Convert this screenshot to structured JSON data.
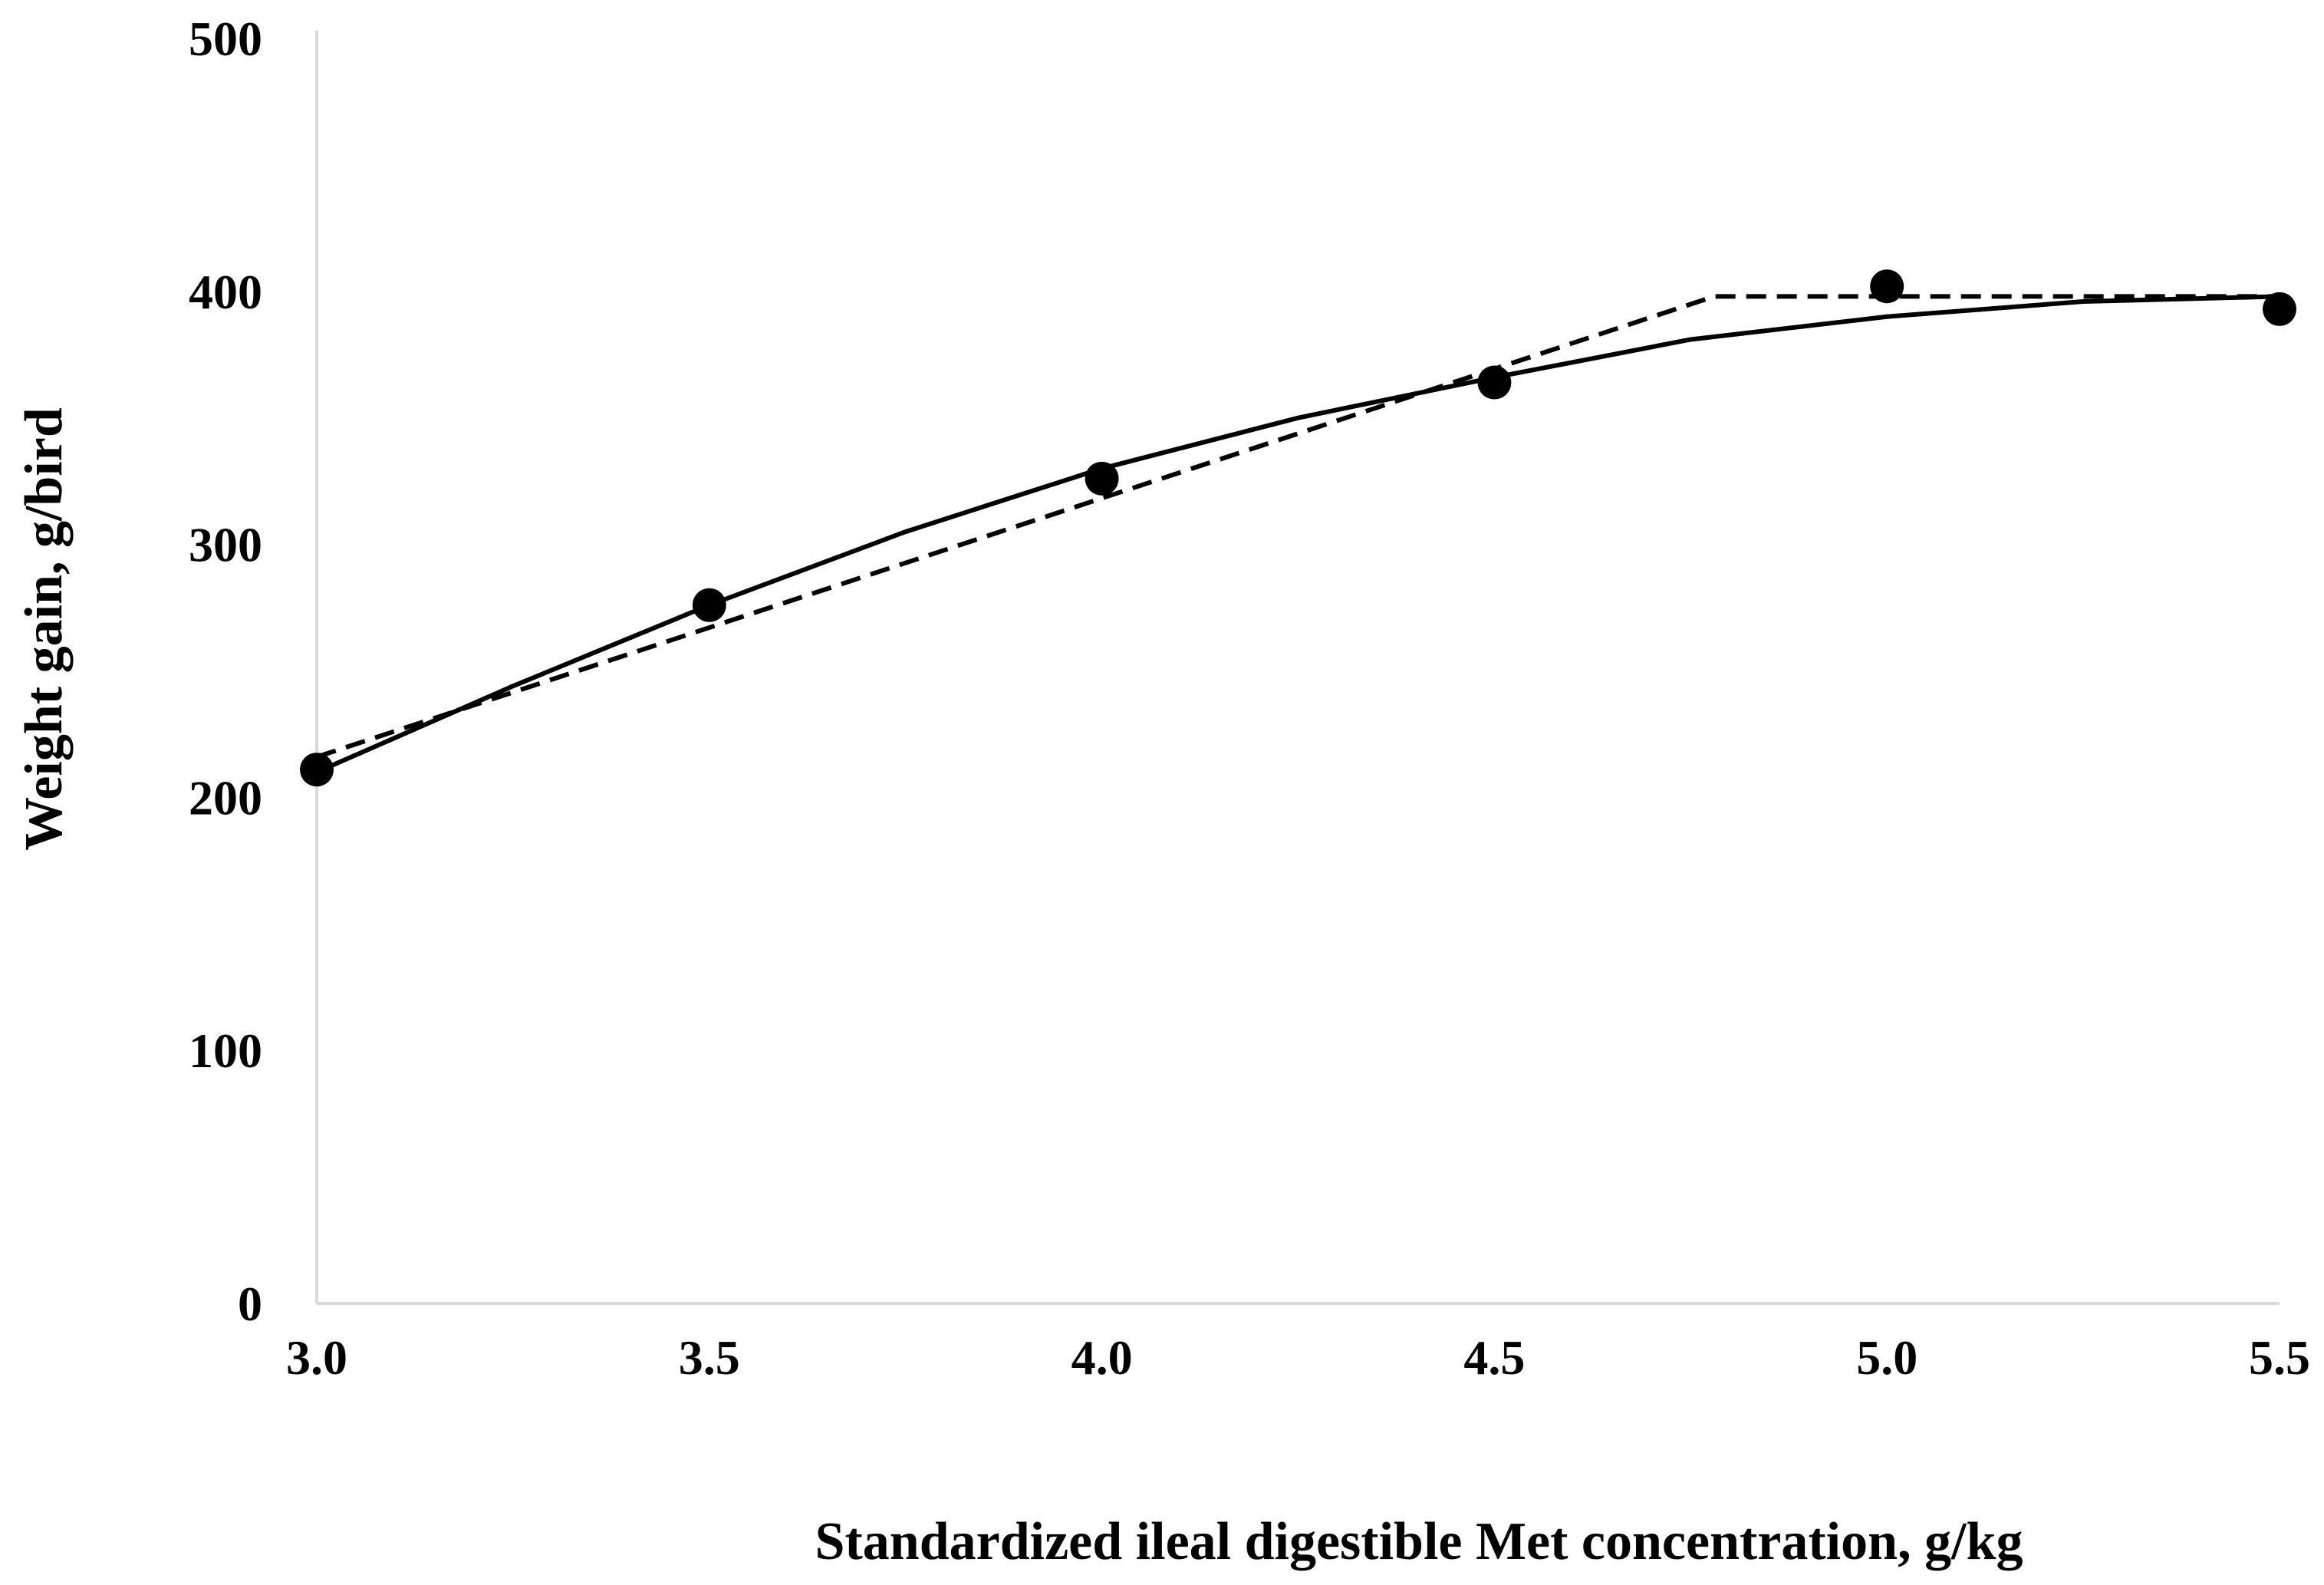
{
  "chart_data": {
    "type": "line",
    "title": "",
    "xlabel": "Standardized ileal digestible Met concentration, g/kg",
    "ylabel": "Weight gain, g/bird",
    "xlim": [
      3.0,
      5.5
    ],
    "ylim": [
      0,
      500
    ],
    "x_ticks": [
      "3.0",
      "3.5",
      "4.0",
      "4.5",
      "5.0",
      "5.5"
    ],
    "y_ticks": [
      "0",
      "100",
      "200",
      "300",
      "400",
      "500"
    ],
    "grid": false,
    "legend": "none",
    "series": [
      {
        "style": "markers",
        "x": [
          3.0,
          3.5,
          4.0,
          4.5,
          5.0,
          5.5
        ],
        "y": [
          211,
          276,
          326,
          364,
          402,
          393
        ]
      },
      {
        "style": "solid-curve",
        "x": [
          3.0,
          3.25,
          3.5,
          3.75,
          4.0,
          4.25,
          4.5,
          4.75,
          5.0,
          5.25,
          5.5
        ],
        "y": [
          210,
          244,
          276,
          305,
          330,
          350,
          366,
          381,
          390,
          396,
          398
        ]
      },
      {
        "style": "dashed-broken-line",
        "x": [
          3.0,
          4.78,
          5.5
        ],
        "y": [
          216,
          398,
          398
        ]
      }
    ],
    "colors": {
      "line": "#000000",
      "axis": "#d9d9d9",
      "text": "#000000"
    }
  }
}
